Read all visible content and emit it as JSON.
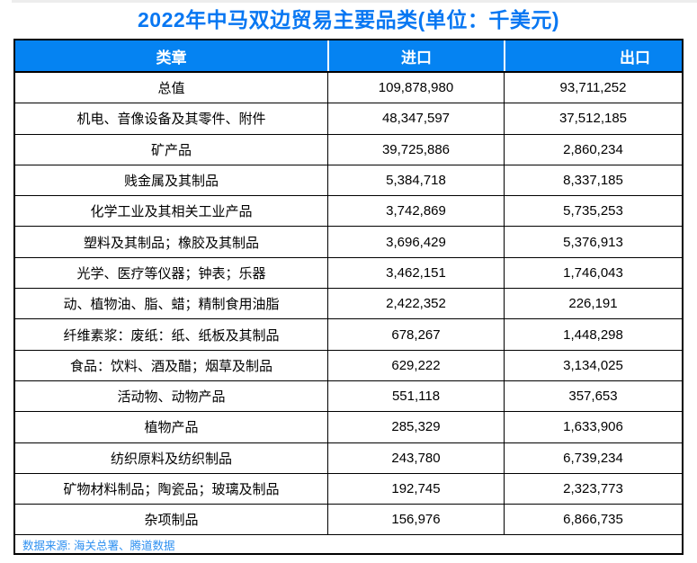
{
  "title": "2022年中马双边贸易主要品类(单位：千美元)",
  "source_note": "数据来源: 海关总署、腾道数据",
  "colors": {
    "accent_blue": "#0583F2",
    "title_blue": "#0877F2",
    "source_blue": "#2E90F0",
    "grid_black": "#000000",
    "header_text": "#FFFFFF"
  },
  "table": {
    "headers": [
      "类章",
      "进口",
      "出口"
    ],
    "rows": [
      {
        "category": "总值",
        "import": "109,878,980",
        "export": "93,711,252"
      },
      {
        "category": "机电、音像设备及其零件、附件",
        "import": "48,347,597",
        "export": "37,512,185"
      },
      {
        "category": "矿产品",
        "import": "39,725,886",
        "export": "2,860,234"
      },
      {
        "category": "贱金属及其制品",
        "import": "5,384,718",
        "export": "8,337,185"
      },
      {
        "category": "化学工业及其相关工业产品",
        "import": "3,742,869",
        "export": "5,735,253"
      },
      {
        "category": "塑料及其制品；橡胶及其制品",
        "import": "3,696,429",
        "export": "5,376,913"
      },
      {
        "category": "光学、医疗等仪器；钟表；乐器",
        "import": "3,462,151",
        "export": "1,746,043"
      },
      {
        "category": "动、植物油、脂、蜡；精制食用油脂",
        "import": "2,422,352",
        "export": "226,191"
      },
      {
        "category": "纤维素浆：废纸：纸、纸板及其制品",
        "import": "678,267",
        "export": "1,448,298"
      },
      {
        "category": "食品：饮料、酒及醋；烟草及制品",
        "import": "629,222",
        "export": "3,134,025"
      },
      {
        "category": "活动物、动物产品",
        "import": "551,118",
        "export": "357,653"
      },
      {
        "category": "植物产品",
        "import": "285,329",
        "export": "1,633,906"
      },
      {
        "category": "纺织原料及纺织制品",
        "import": "243,780",
        "export": "6,739,234"
      },
      {
        "category": "矿物材料制品；陶瓷品；玻璃及制品",
        "import": "192,745",
        "export": "2,323,773"
      },
      {
        "category": "杂项制品",
        "import": "156,976",
        "export": "6,866,735"
      }
    ]
  },
  "chart_data": {
    "type": "table",
    "title": "2022年中马双边贸易主要品类(单位：千美元)",
    "unit": "千美元",
    "columns": [
      "类章",
      "进口",
      "出口"
    ],
    "rows": [
      [
        "总值",
        109878980,
        93711252
      ],
      [
        "机电、音像设备及其零件、附件",
        48347597,
        37512185
      ],
      [
        "矿产品",
        39725886,
        2860234
      ],
      [
        "贱金属及其制品",
        5384718,
        8337185
      ],
      [
        "化学工业及其相关工业产品",
        3742869,
        5735253
      ],
      [
        "塑料及其制品；橡胶及其制品",
        3696429,
        5376913
      ],
      [
        "光学、医疗等仪器；钟表；乐器",
        3462151,
        1746043
      ],
      [
        "动、植物油、脂、蜡；精制食用油脂",
        2422352,
        226191
      ],
      [
        "纤维素浆：废纸：纸、纸板及其制品",
        678267,
        1448298
      ],
      [
        "食品：饮料、酒及醋；烟草及制品",
        629222,
        3134025
      ],
      [
        "活动物、动物产品",
        551118,
        357653
      ],
      [
        "植物产品",
        285329,
        1633906
      ],
      [
        "纺织原料及纺织制品",
        243780,
        6739234
      ],
      [
        "矿物材料制品；陶瓷品；玻璃及制品",
        192745,
        2323773
      ],
      [
        "杂项制品",
        156976,
        6866735
      ]
    ],
    "source": "数据来源: 海关总署、腾道数据"
  }
}
